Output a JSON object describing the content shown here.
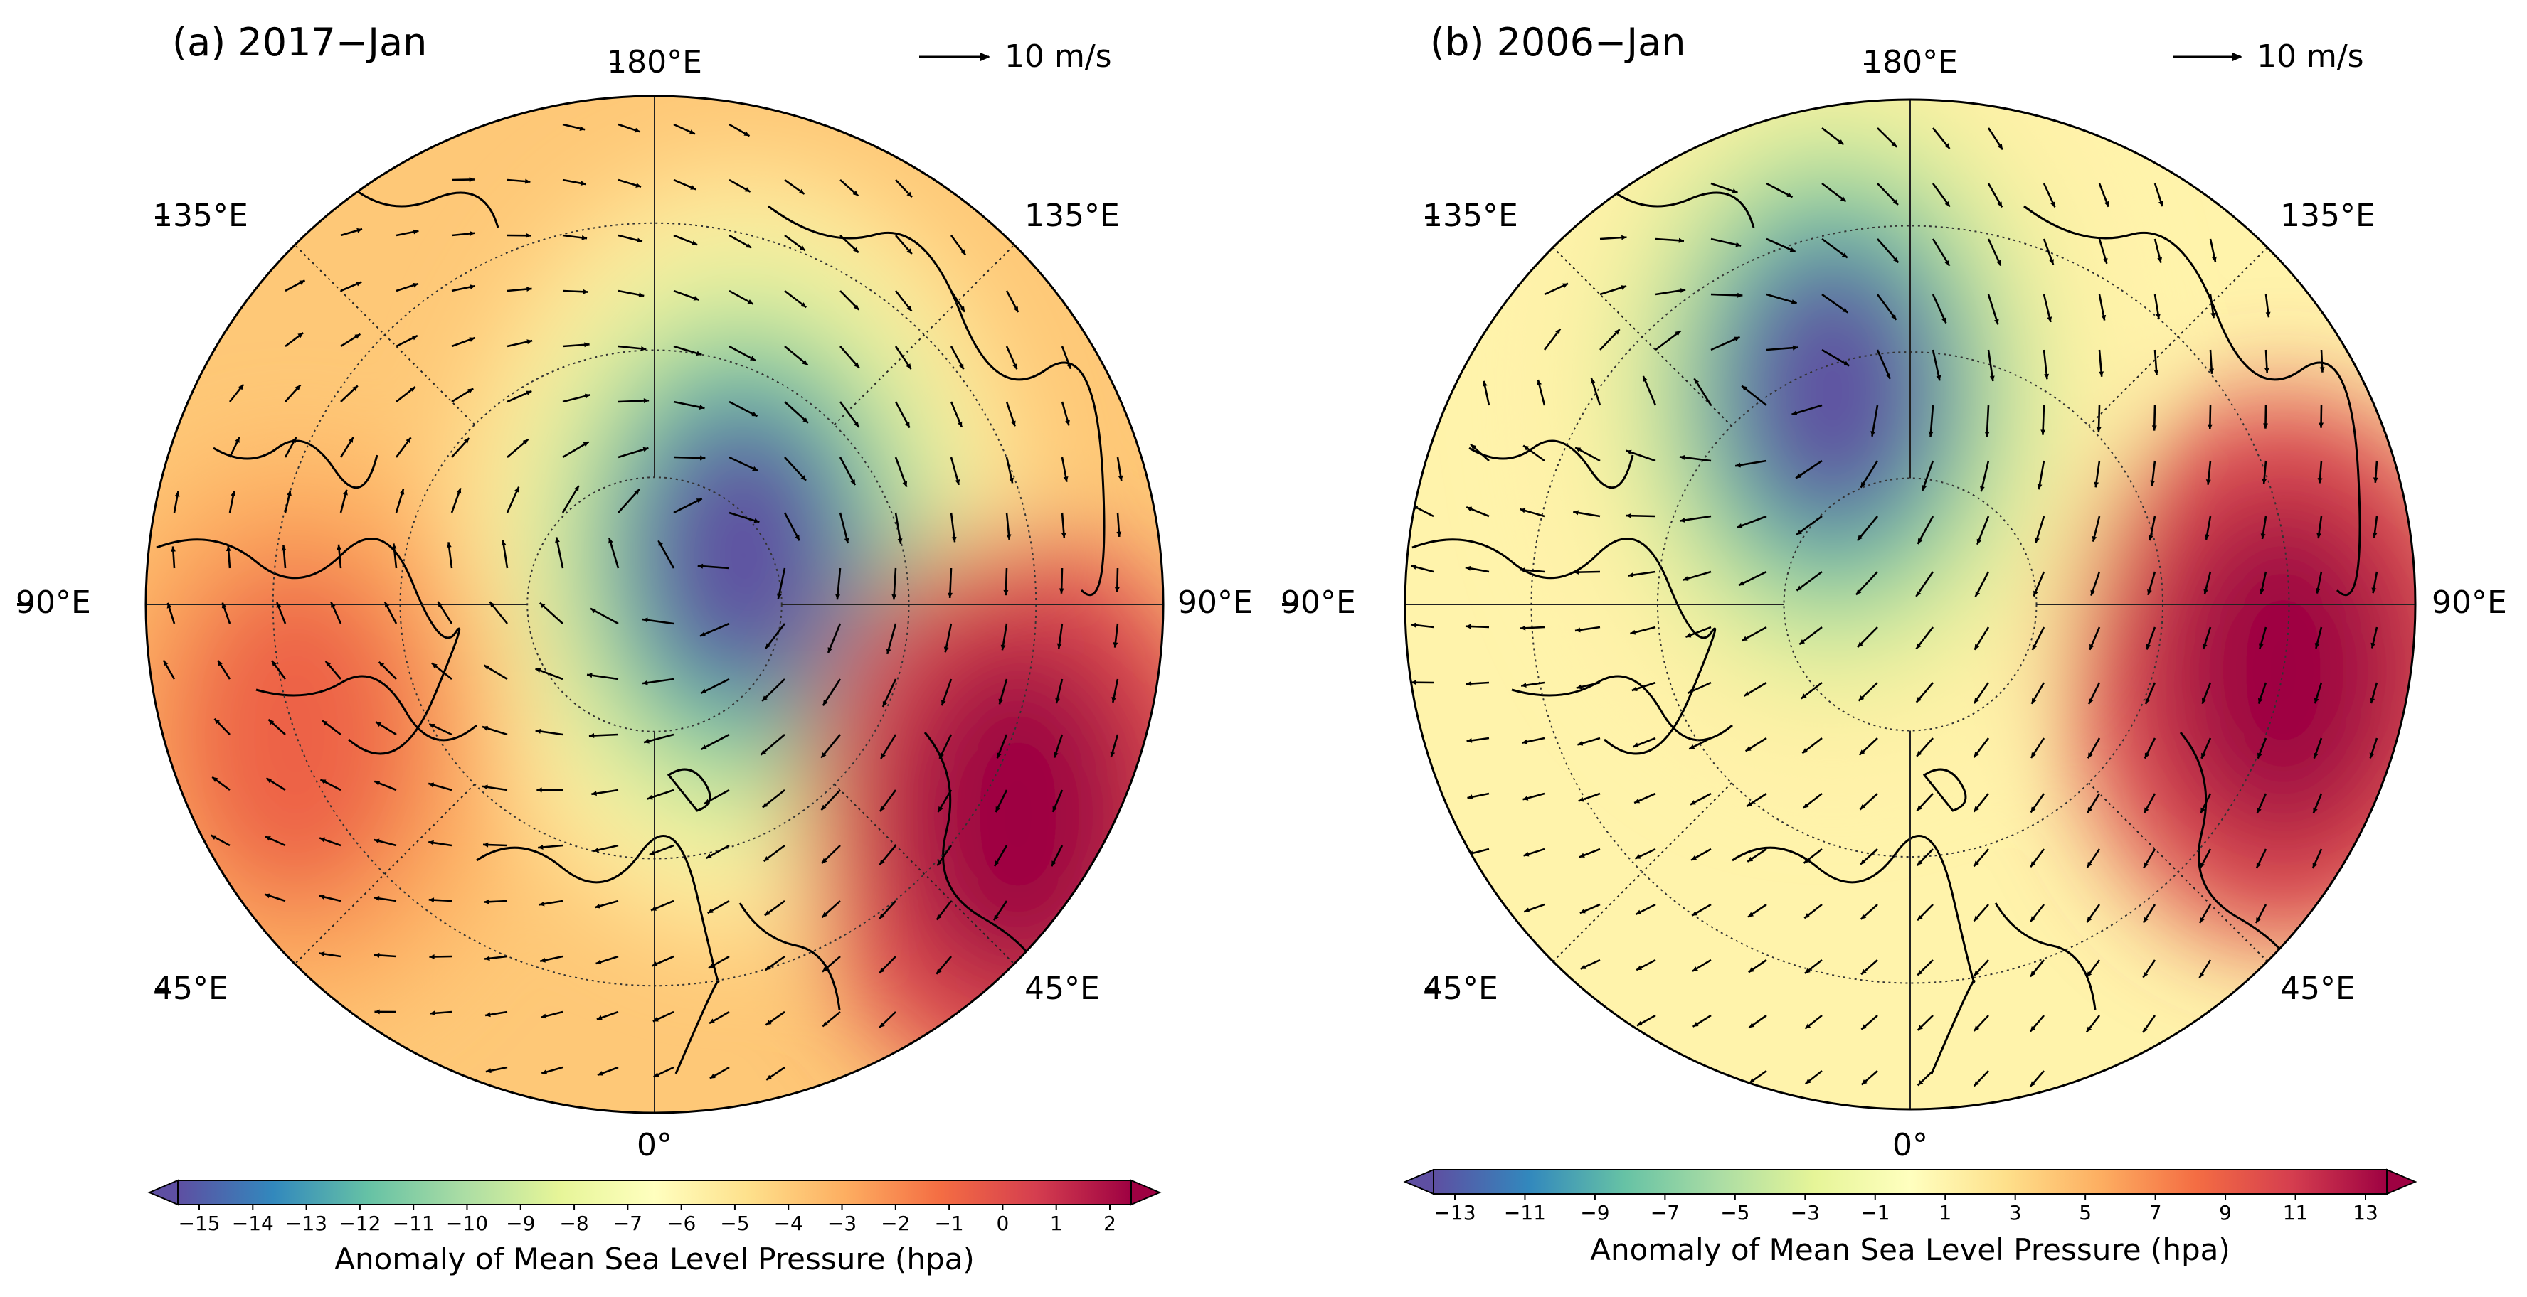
{
  "panels": [
    {
      "title": "(a) 2017−Jan",
      "vector_key": "10 m/s",
      "lon_labels": {
        "top": "180°E",
        "upper_left": "135°E",
        "upper_right": "135°E",
        "left": "90°E",
        "right": "90°E",
        "lower_left": "45°E",
        "lower_right": "45°E",
        "bottom": "0°"
      },
      "colorbar": {
        "label": "Anomaly of Mean Sea Level Pressure (hpa)",
        "ticks": [
          "−15",
          "−14",
          "−13",
          "−12",
          "−11",
          "−10",
          "−9",
          "−8",
          "−7",
          "−6",
          "−5",
          "−4",
          "−3",
          "−2",
          "−1",
          "0",
          "1",
          "2"
        ],
        "min": -15,
        "max": 2,
        "extend": "both"
      },
      "field": {
        "low_center": {
          "lon": 120,
          "colat": 8,
          "value": -15
        },
        "high_regions": [
          {
            "lon": 60,
            "colat": 33,
            "value": 2
          },
          {
            "lon": -70,
            "colat": 30,
            "value": -1
          }
        ]
      }
    },
    {
      "title": "(b) 2006−Jan",
      "vector_key": "10 m/s",
      "lon_labels": {
        "top": "180°E",
        "upper_left": "135°E",
        "upper_right": "135°E",
        "left": "90°E",
        "right": "90°E",
        "lower_left": "45°E",
        "lower_right": "45°E",
        "bottom": "0°"
      },
      "colorbar": {
        "label": "Anomaly of Mean Sea Level Pressure (hpa)",
        "ticks": [
          "−13",
          "−11",
          "−9",
          "−7",
          "−5",
          "−3",
          "−1",
          "1",
          "3",
          "5",
          "7",
          "9",
          "11",
          "13"
        ],
        "min": -13,
        "max": 13,
        "extend": "both"
      },
      "field": {
        "low_center": {
          "lon": -160,
          "colat": 18,
          "value": -13
        },
        "high_regions": [
          {
            "lon": 80,
            "colat": 30,
            "value": 13
          }
        ]
      }
    }
  ],
  "colors": {
    "colormap": "Spectral_r",
    "spectral_r": [
      "#5e4fa2",
      "#3288bd",
      "#66c2a5",
      "#abdda4",
      "#e6f598",
      "#ffffbf",
      "#fee08b",
      "#fdae61",
      "#f46d43",
      "#d53e4f",
      "#9e0142"
    ],
    "coastline": "#000000",
    "gridline": "#333333",
    "vectors": "#000000"
  }
}
